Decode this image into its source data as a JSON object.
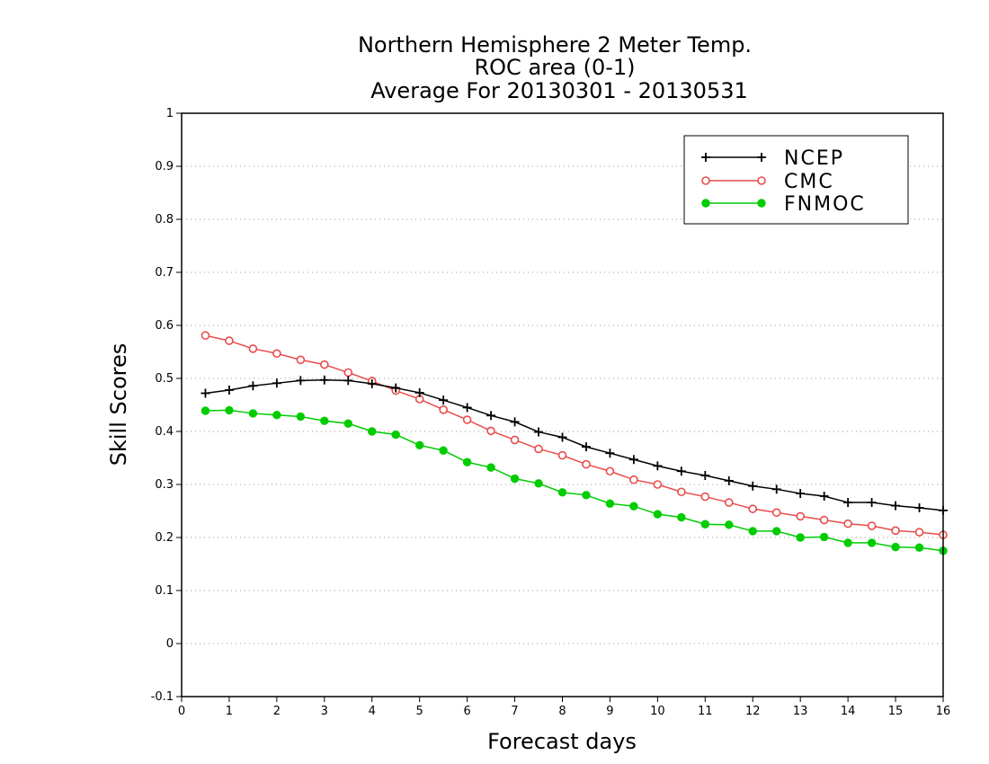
{
  "chart_data": {
    "type": "line",
    "title_lines": [
      "Northern Hemisphere 2 Meter Temp.",
      "ROC area (0-1)",
      "Average For 20130301 - 20130531"
    ],
    "xlabel": "Forecast days",
    "ylabel": "Skill Scores",
    "xlim": [
      0,
      16
    ],
    "ylim": [
      -0.1,
      1
    ],
    "xticks": [
      0,
      1,
      2,
      3,
      4,
      5,
      6,
      7,
      8,
      9,
      10,
      11,
      12,
      13,
      14,
      15,
      16
    ],
    "xtick_labels": [
      "0",
      "1",
      "2",
      "3",
      "4",
      "5",
      "6",
      "7",
      "8",
      "9",
      "10",
      "11",
      "12",
      "13",
      "14",
      "15",
      "16"
    ],
    "yticks": [
      -0.1,
      0,
      0.1,
      0.2,
      0.3,
      0.4,
      0.5,
      0.6,
      0.7,
      0.8,
      0.9,
      1
    ],
    "ytick_labels": [
      "-0.1",
      "0",
      "0.1",
      "0.2",
      "0.3",
      "0.4",
      "0.5",
      "0.6",
      "0.7",
      "0.8",
      "0.9",
      "1"
    ],
    "grid": true,
    "legend_position": "top-right",
    "x": [
      0.5,
      1,
      1.5,
      2,
      2.5,
      3,
      3.5,
      4,
      4.5,
      5,
      5.5,
      6,
      6.5,
      7,
      7.5,
      8,
      8.5,
      9,
      9.5,
      10,
      10.5,
      11,
      11.5,
      12,
      12.5,
      13,
      13.5,
      14,
      14.5,
      15,
      15.5,
      16
    ],
    "series": [
      {
        "name": "NCEP",
        "color": "#000000",
        "marker": "plus",
        "values": [
          0.472,
          0.478,
          0.486,
          0.491,
          0.496,
          0.497,
          0.496,
          0.49,
          0.482,
          0.473,
          0.459,
          0.445,
          0.43,
          0.418,
          0.399,
          0.389,
          0.371,
          0.359,
          0.347,
          0.335,
          0.325,
          0.317,
          0.307,
          0.297,
          0.291,
          0.283,
          0.278,
          0.266,
          0.266,
          0.26,
          0.256,
          0.251
        ]
      },
      {
        "name": "CMC",
        "color": "#e84c4c",
        "marker": "open-circle",
        "values": [
          0.581,
          0.571,
          0.556,
          0.547,
          0.535,
          0.526,
          0.511,
          0.495,
          0.477,
          0.461,
          0.441,
          0.422,
          0.401,
          0.384,
          0.367,
          0.355,
          0.338,
          0.325,
          0.309,
          0.3,
          0.286,
          0.277,
          0.266,
          0.254,
          0.247,
          0.24,
          0.233,
          0.226,
          0.222,
          0.213,
          0.21,
          0.205
        ]
      },
      {
        "name": "FNMOC",
        "color": "#00cc00",
        "marker": "filled-circle",
        "values": [
          0.439,
          0.44,
          0.434,
          0.431,
          0.428,
          0.42,
          0.415,
          0.4,
          0.394,
          0.374,
          0.364,
          0.342,
          0.332,
          0.311,
          0.302,
          0.285,
          0.28,
          0.264,
          0.259,
          0.244,
          0.238,
          0.225,
          0.224,
          0.212,
          0.212,
          0.2,
          0.201,
          0.19,
          0.19,
          0.182,
          0.181,
          0.175
        ]
      }
    ]
  }
}
